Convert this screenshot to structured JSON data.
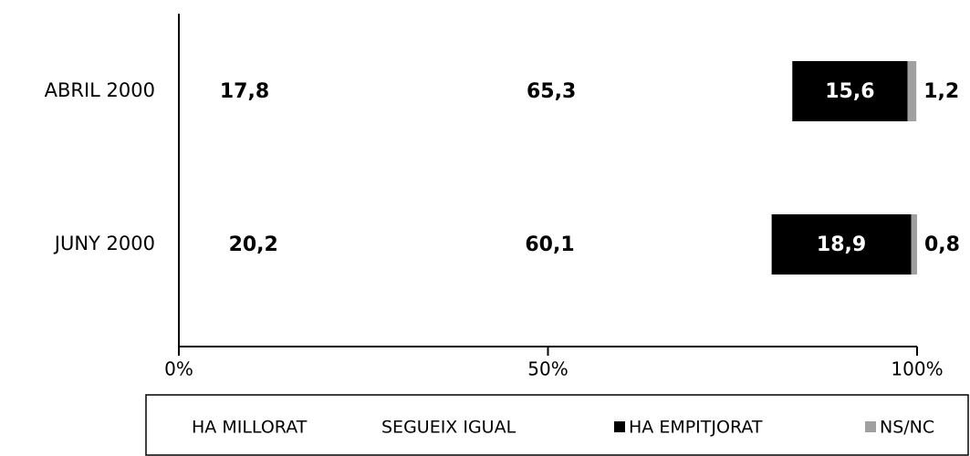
{
  "chart_data": {
    "type": "stacked-bar-horizontal",
    "categories": [
      "ABRIL 2000",
      "JUNY 2000"
    ],
    "series": [
      {
        "name": "HA MILLORAT",
        "color": "#ffffff",
        "values": [
          17.8,
          20.2
        ],
        "value_labels": [
          "17,8",
          "20,2"
        ]
      },
      {
        "name": "SEGUEIX IGUAL",
        "color": "#ffffff",
        "values": [
          65.3,
          60.1
        ],
        "value_labels": [
          "65,3",
          "60,1"
        ]
      },
      {
        "name": "HA EMPITJORAT",
        "color": "#000000",
        "values": [
          15.6,
          18.9
        ],
        "value_labels": [
          "15,6",
          "18,9"
        ]
      },
      {
        "name": "NS/NC",
        "color": "#a0a0a0",
        "values": [
          1.2,
          0.8
        ],
        "value_labels": [
          "1,2",
          "0,8"
        ]
      }
    ],
    "xlim": [
      0,
      100
    ],
    "xticks": [
      {
        "value": 0,
        "label": "0%"
      },
      {
        "value": 50,
        "label": "50%"
      },
      {
        "value": 100,
        "label": "100%"
      }
    ],
    "legend": "bottom"
  }
}
